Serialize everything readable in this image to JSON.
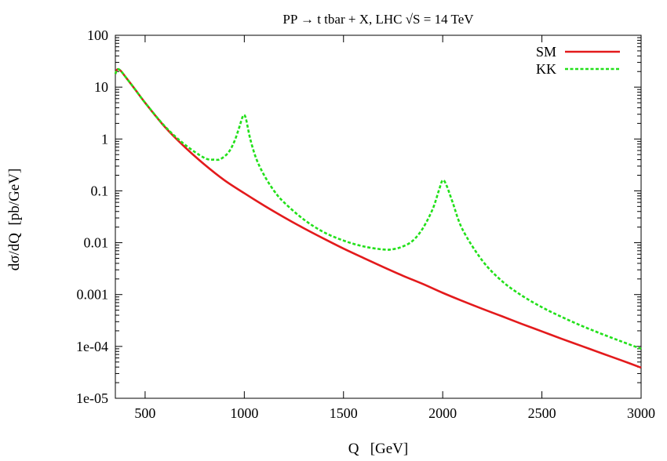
{
  "chart_data": {
    "type": "line",
    "title": "PP → t tbar + X, LHC √S = 14 TeV",
    "xlabel": "Q   [GeV]",
    "ylabel": "dσ/dQ  [pb/GeV]",
    "xlim": [
      350,
      3000
    ],
    "ylim": [
      1e-05,
      100
    ],
    "yscale": "log",
    "grid": false,
    "legend_position": "top-right",
    "x_ticks": [
      {
        "value": 500,
        "label": "500"
      },
      {
        "value": 1000,
        "label": "1000"
      },
      {
        "value": 1500,
        "label": "1500"
      },
      {
        "value": 2000,
        "label": "2000"
      },
      {
        "value": 2500,
        "label": "2500"
      },
      {
        "value": 3000,
        "label": "3000"
      }
    ],
    "y_ticks": [
      {
        "value": 1e-05,
        "label": "1e-05"
      },
      {
        "value": 0.0001,
        "label": "1e-04"
      },
      {
        "value": 0.001,
        "label": "0.001"
      },
      {
        "value": 0.01,
        "label": "0.01"
      },
      {
        "value": 0.1,
        "label": "0.1"
      },
      {
        "value": 1,
        "label": "1"
      },
      {
        "value": 10,
        "label": "10"
      },
      {
        "value": 100,
        "label": "100"
      }
    ],
    "series": [
      {
        "name": "SM",
        "color": "#e31a1c",
        "style": "solid",
        "x": [
          350,
          360,
          375,
          400,
          450,
          500,
          600,
          700,
          800,
          900,
          1000,
          1100,
          1200,
          1300,
          1400,
          1500,
          1600,
          1700,
          1800,
          1900,
          2000,
          2100,
          2200,
          2300,
          2400,
          2500,
          2600,
          2700,
          2800,
          2900,
          3000
        ],
        "y": [
          18,
          22,
          21,
          16,
          9,
          5,
          1.7,
          0.7,
          0.32,
          0.16,
          0.09,
          0.052,
          0.031,
          0.019,
          0.012,
          0.0077,
          0.0051,
          0.0034,
          0.0023,
          0.0016,
          0.00108,
          0.00075,
          0.00053,
          0.00038,
          0.00027,
          0.000195,
          0.00014,
          0.000102,
          7.4e-05,
          5.4e-05,
          3.9e-05
        ]
      },
      {
        "name": "KK",
        "color": "#22e01a",
        "style": "dashed",
        "x": [
          350,
          360,
          375,
          400,
          450,
          500,
          600,
          700,
          800,
          850,
          880,
          920,
          950,
          975,
          990,
          1000,
          1010,
          1030,
          1060,
          1100,
          1150,
          1200,
          1300,
          1400,
          1500,
          1600,
          1700,
          1750,
          1800,
          1850,
          1900,
          1950,
          1980,
          2000,
          2020,
          2050,
          2100,
          2200,
          2300,
          2400,
          2500,
          2600,
          2700,
          2800,
          2900,
          3000
        ],
        "y": [
          18,
          22,
          21,
          16,
          9,
          5,
          1.75,
          0.78,
          0.43,
          0.4,
          0.41,
          0.55,
          0.9,
          1.7,
          2.6,
          2.9,
          2.3,
          1.0,
          0.42,
          0.2,
          0.1,
          0.06,
          0.028,
          0.016,
          0.011,
          0.0085,
          0.0074,
          0.0075,
          0.0085,
          0.011,
          0.019,
          0.045,
          0.1,
          0.16,
          0.125,
          0.06,
          0.018,
          0.0045,
          0.0018,
          0.00095,
          0.00057,
          0.00037,
          0.00025,
          0.000175,
          0.000125,
          9e-05
        ]
      }
    ]
  }
}
